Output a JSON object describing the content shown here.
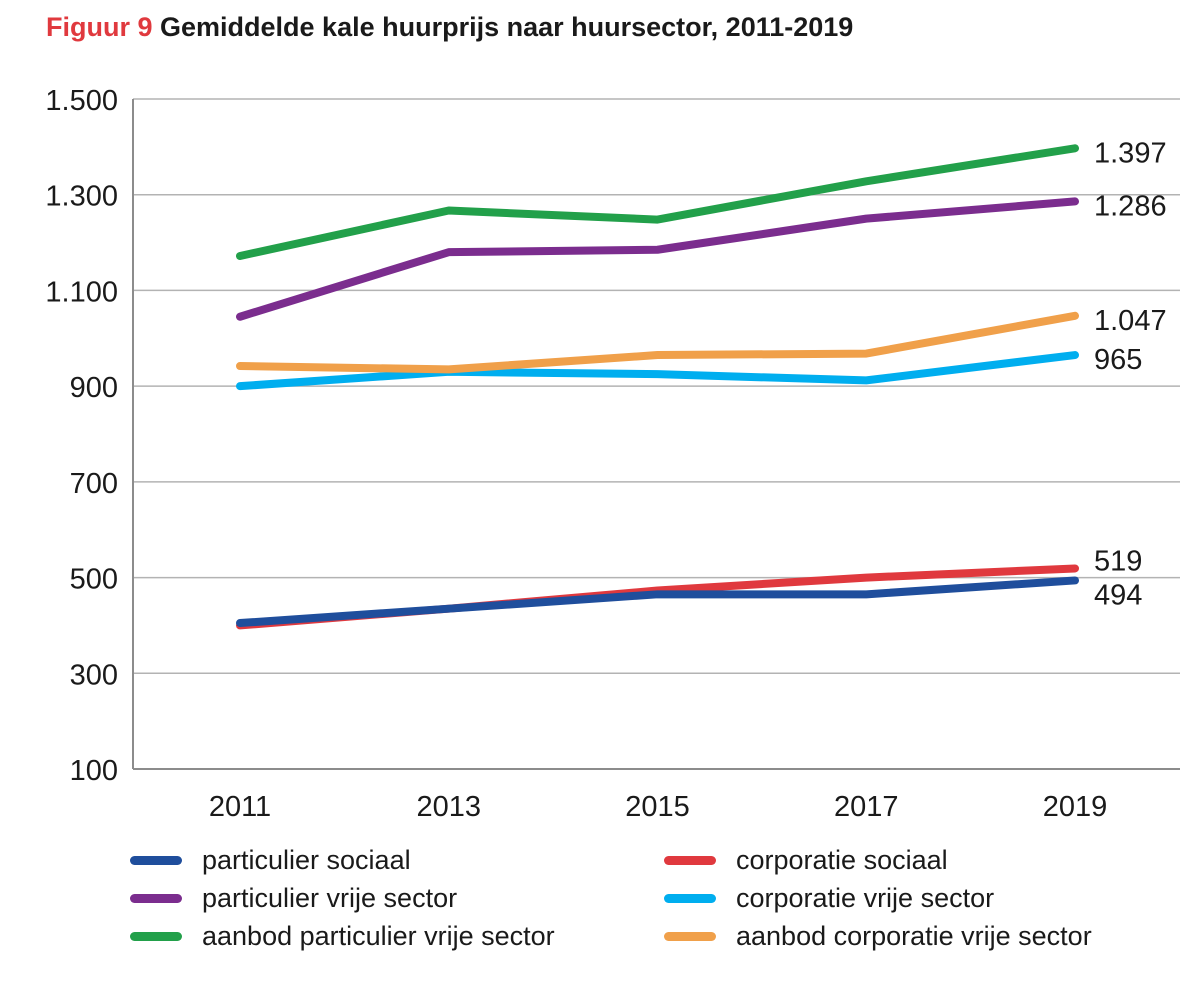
{
  "title": {
    "prefix": "Figuur 9",
    "main": "Gemiddelde kale huurprijs naar huursector, 2011-2019"
  },
  "chart_data": {
    "type": "line",
    "x": [
      "2011",
      "2013",
      "2015",
      "2017",
      "2019"
    ],
    "ylim": [
      100,
      1500
    ],
    "yticks": [
      "100",
      "300",
      "500",
      "700",
      "900",
      "1.100",
      "1.300",
      "1.500"
    ],
    "ytick_values": [
      100,
      300,
      500,
      700,
      900,
      1100,
      1300,
      1500
    ],
    "grid": true,
    "legend_position": "bottom",
    "series": [
      {
        "name": "particulier sociaal",
        "color": "#1f4e9c",
        "values": [
          405,
          435,
          465,
          465,
          494
        ],
        "end_label": "494"
      },
      {
        "name": "corporatie sociaal",
        "color": "#e0393e",
        "values": [
          400,
          435,
          473,
          500,
          519
        ],
        "end_label": "519"
      },
      {
        "name": "particulier vrije sector",
        "color": "#7b2d8e",
        "values": [
          1045,
          1180,
          1185,
          1250,
          1286
        ],
        "end_label": "1.286"
      },
      {
        "name": "corporatie vrije sector",
        "color": "#00aeef",
        "values": [
          900,
          930,
          925,
          912,
          965
        ],
        "end_label": "965"
      },
      {
        "name": "aanbod particulier vrije sector",
        "color": "#22a04a",
        "values": [
          1172,
          1267,
          1248,
          1328,
          1397
        ],
        "end_label": "1.397"
      },
      {
        "name": "aanbod corporatie vrije sector",
        "color": "#f0a04a",
        "values": [
          942,
          935,
          965,
          968,
          1047
        ],
        "end_label": "1.047"
      }
    ]
  }
}
